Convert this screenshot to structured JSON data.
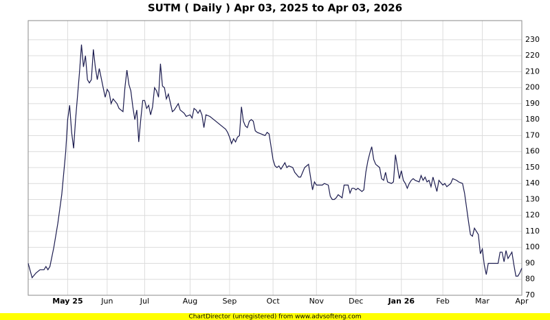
{
  "chart_data": {
    "type": "line",
    "title": "SUTM ( Daily ) Apr 03, 2025 to Apr 03, 2026",
    "footer": "ChartDirector (unregistered) from www.advsofteng.com",
    "x": [
      0,
      2,
      4,
      6,
      8,
      9,
      10,
      11,
      13,
      15,
      17,
      19,
      20,
      21,
      22,
      23,
      24,
      26,
      27,
      28,
      29,
      30,
      31,
      32,
      33,
      34,
      35,
      36,
      38,
      39,
      40,
      41,
      42,
      43,
      45,
      46,
      48,
      49,
      50,
      51,
      52,
      53,
      54,
      55,
      56,
      57,
      58,
      59,
      60,
      61,
      62,
      63,
      64,
      65,
      66,
      67,
      68,
      69,
      70,
      71,
      73,
      74,
      76,
      77,
      79,
      80,
      82,
      83,
      84,
      85,
      86,
      87,
      88,
      89,
      90,
      92,
      94,
      96,
      97,
      99,
      100,
      101,
      102,
      103,
      104,
      105,
      106,
      107,
      108,
      109,
      110,
      111,
      112,
      113,
      114,
      115,
      116,
      118,
      120,
      121,
      122,
      123,
      124,
      125,
      126,
      127,
      128,
      130,
      131,
      132,
      134,
      135,
      137,
      138,
      140,
      142,
      143,
      144,
      145,
      146,
      149,
      150,
      152,
      153,
      154,
      155,
      156,
      157,
      159,
      160,
      162,
      163,
      164,
      165,
      166,
      167,
      169,
      170,
      171,
      172,
      173,
      174,
      175,
      176,
      178,
      179,
      180,
      181,
      182,
      184,
      185,
      186,
      188,
      189,
      190,
      191,
      192,
      193,
      194,
      195,
      196,
      198,
      199,
      200,
      201,
      202,
      203,
      204,
      205,
      207,
      208,
      210,
      211,
      212,
      214,
      215,
      217,
      218,
      220,
      221,
      222,
      223,
      224,
      225,
      226,
      228,
      229,
      230,
      231,
      232,
      233,
      235,
      238,
      239,
      240,
      241,
      242,
      243,
      245,
      246,
      247,
      248,
      249,
      250
    ],
    "values": [
      90,
      81,
      84,
      86,
      86,
      88,
      86,
      88,
      100,
      115,
      133,
      160,
      180,
      189,
      172,
      162,
      180,
      210,
      227,
      213,
      220,
      205,
      203,
      205,
      224,
      213,
      205,
      212,
      200,
      194,
      199,
      197,
      190,
      193,
      190,
      187,
      185,
      200,
      211,
      202,
      198,
      188,
      180,
      186,
      166,
      180,
      192,
      192,
      187,
      189,
      183,
      188,
      200,
      198,
      194,
      215,
      201,
      200,
      193,
      196,
      185,
      186,
      190,
      186,
      184,
      182,
      183,
      181,
      187,
      186,
      184,
      186,
      183,
      175,
      183,
      182,
      180,
      178,
      177,
      175,
      174,
      172,
      169,
      165,
      168,
      166,
      169,
      170,
      188,
      179,
      176,
      175,
      179,
      180,
      179,
      173,
      172,
      171,
      170,
      172,
      171,
      163,
      155,
      151,
      150,
      151,
      149,
      153,
      150,
      151,
      150,
      147,
      144,
      144,
      150,
      152,
      144,
      136,
      141,
      139,
      139,
      140,
      139,
      132,
      130,
      130,
      131,
      133,
      131,
      139,
      139,
      134,
      137,
      137,
      136,
      137,
      135,
      136,
      147,
      154,
      159,
      163,
      155,
      152,
      150,
      143,
      142,
      147,
      141,
      140,
      141,
      158,
      143,
      148,
      142,
      140,
      137,
      140,
      142,
      143,
      142,
      141,
      145,
      142,
      144,
      141,
      142,
      138,
      144,
      135,
      142,
      139,
      140,
      138,
      140,
      143,
      142,
      141,
      140,
      134,
      125,
      116,
      108,
      107,
      112,
      108,
      96,
      99,
      89,
      83,
      90,
      90,
      90,
      97,
      97,
      91,
      98,
      93,
      97,
      89,
      82,
      82,
      84,
      87
    ],
    "color": "#1a1a4e",
    "xlim": [
      0,
      250
    ],
    "xticks": [
      {
        "value": 20,
        "label": "May 25"
      },
      {
        "value": 40,
        "label": "Jun"
      },
      {
        "value": 59,
        "label": "Jul"
      },
      {
        "value": 82,
        "label": "Aug"
      },
      {
        "value": 102,
        "label": "Sep"
      },
      {
        "value": 124,
        "label": "Oct"
      },
      {
        "value": 146,
        "label": "Nov"
      },
      {
        "value": 166,
        "label": "Dec"
      },
      {
        "value": 189,
        "label": "Jan 26"
      },
      {
        "value": 210,
        "label": "Feb"
      },
      {
        "value": 230,
        "label": "Mar"
      },
      {
        "value": 250,
        "label": "Apr"
      }
    ],
    "ylim": [
      70,
      242
    ],
    "yticks": [
      70,
      80,
      90,
      100,
      110,
      120,
      130,
      140,
      150,
      160,
      170,
      180,
      190,
      200,
      210,
      220,
      230
    ],
    "grid": true
  }
}
